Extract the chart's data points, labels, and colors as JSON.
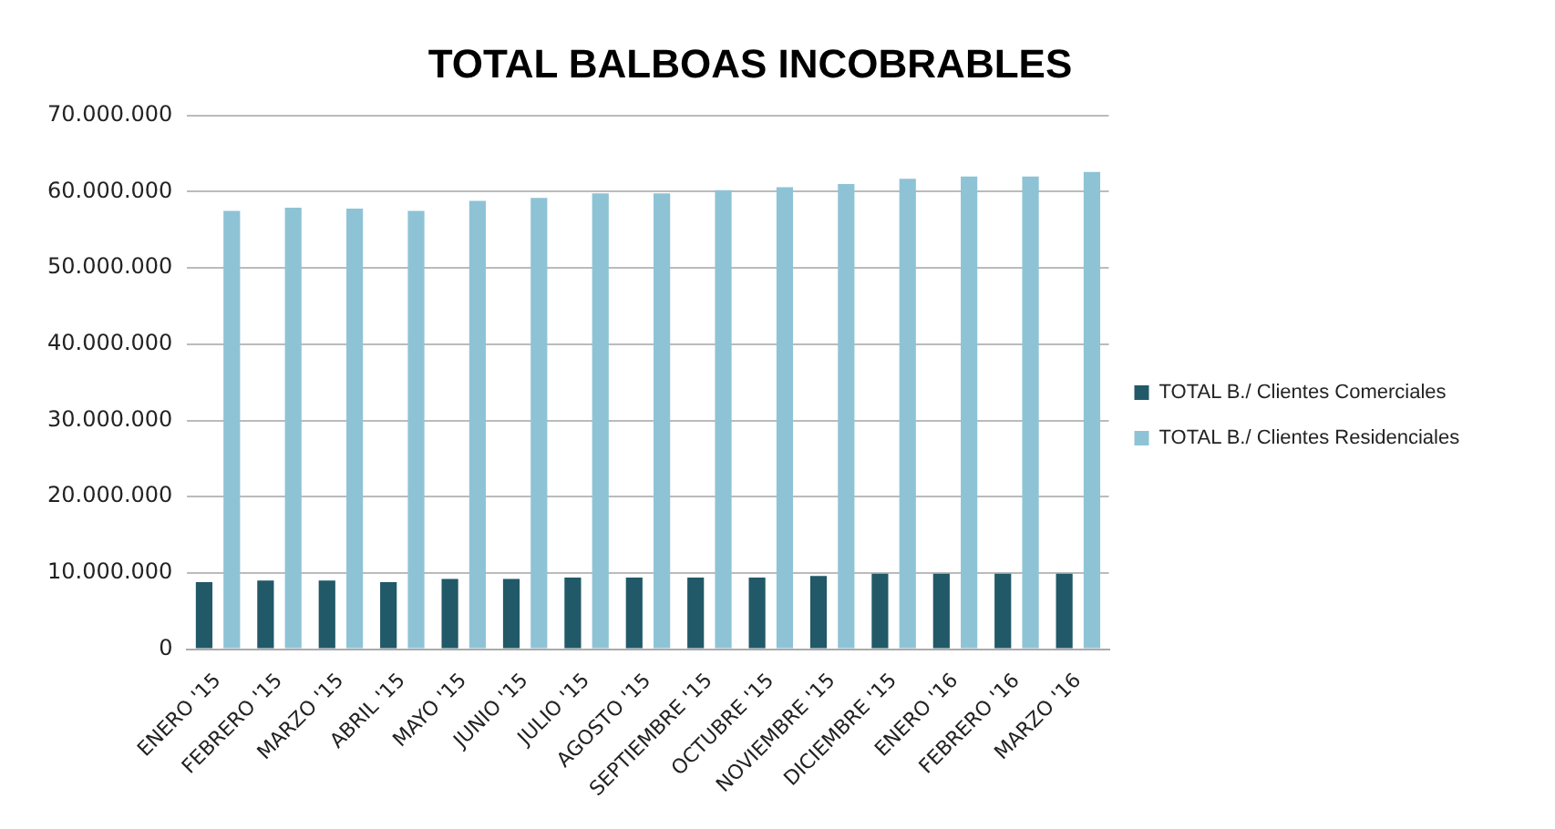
{
  "chart_data": {
    "type": "bar",
    "title": "TOTAL BALBOAS INCOBRABLES",
    "categories": [
      "ENERO '15",
      "FEBRERO '15",
      "MARZO '15",
      "ABRIL '15",
      "MAYO '15",
      "JUNIO '15",
      "JULIO '15",
      "AGOSTO '15",
      "SEPTIEMBRE '15",
      "OCTUBRE '15",
      "NOVIEMBRE '15",
      "DICIEMBRE '15",
      "ENERO '16",
      "FEBRERO '16",
      "MARZO '16"
    ],
    "series": [
      {
        "name": "TOTAL B./ Clientes Comerciales",
        "color": "#215968",
        "values": [
          8800000,
          9000000,
          9000000,
          8800000,
          9200000,
          9200000,
          9400000,
          9400000,
          9400000,
          9400000,
          9600000,
          9900000,
          9900000,
          9900000,
          9900000
        ]
      },
      {
        "name": "TOTAL B./ Clientes Residenciales",
        "color": "#8ec3d6",
        "values": [
          57500000,
          57900000,
          57800000,
          57500000,
          58800000,
          59200000,
          59800000,
          59800000,
          60200000,
          60600000,
          61000000,
          61700000,
          62000000,
          62000000,
          62600000
        ]
      }
    ],
    "ylim": [
      0,
      70000000
    ],
    "yticks": [
      {
        "value": 0,
        "label": "0"
      },
      {
        "value": 10000000,
        "label": "10.000.000"
      },
      {
        "value": 20000000,
        "label": "20.000.000"
      },
      {
        "value": 30000000,
        "label": "30.000.000"
      },
      {
        "value": 40000000,
        "label": "40.000.000"
      },
      {
        "value": 50000000,
        "label": "50.000.000"
      },
      {
        "value": 60000000,
        "label": "60.000.000"
      },
      {
        "value": 70000000,
        "label": "70.000.000"
      }
    ],
    "grid": "y",
    "legend": "right"
  }
}
